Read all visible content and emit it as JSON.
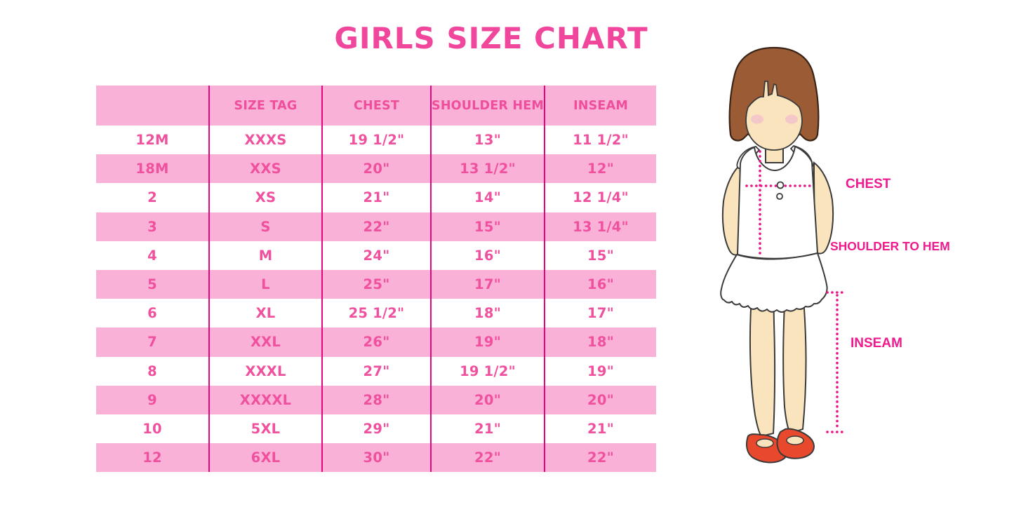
{
  "title": "GIRLS SIZE CHART",
  "colors": {
    "title_pink": "#F0479C",
    "table_text_pink": "#F0519E",
    "row_band_pink": "#FAB1D8",
    "divider_magenta": "#E5057E",
    "label_pink": "#ED1B8E",
    "dotted_line_pink": "#EC1287",
    "hair_brown": "#9A5B35",
    "skin": "#FAE4BE",
    "blush": "#F3C3C9",
    "shoe_red": "#E8492D",
    "background": "#FFFFFF"
  },
  "chart_data": {
    "type": "table",
    "title": "GIRLS SIZE CHART",
    "columns": [
      "",
      "SIZE TAG",
      "CHEST",
      "SHOULDER HEM",
      "INSEAM"
    ],
    "rows": [
      [
        "12M",
        "XXXS",
        "19 1/2\"",
        "13\"",
        "11 1/2\""
      ],
      [
        "18M",
        "XXS",
        "20\"",
        "13 1/2\"",
        "12\""
      ],
      [
        "2",
        "XS",
        "21\"",
        "14\"",
        "12 1/4\""
      ],
      [
        "3",
        "S",
        "22\"",
        "15\"",
        "13 1/4\""
      ],
      [
        "4",
        "M",
        "24\"",
        "16\"",
        "15\""
      ],
      [
        "5",
        "L",
        "25\"",
        "17\"",
        "16\""
      ],
      [
        "6",
        "XL",
        "25 1/2\"",
        "18\"",
        "17\""
      ],
      [
        "7",
        "XXL",
        "26\"",
        "19\"",
        "18\""
      ],
      [
        "8",
        "XXXL",
        "27\"",
        "19 1/2\"",
        "19\""
      ],
      [
        "9",
        "XXXXL",
        "28\"",
        "20\"",
        "20\""
      ],
      [
        "10",
        "5XL",
        "29\"",
        "21\"",
        "21\""
      ],
      [
        "12",
        "6XL",
        "30\"",
        "22\"",
        "22\""
      ]
    ],
    "row_striping": "header pink; data rows alternate white/pink starting white",
    "legend_position": "none",
    "grid": "vertical magenta dividers between columns only"
  },
  "figure": {
    "description": "cartoon girl with brown bob, white sleeveless top and skirt, red shoes",
    "labels": {
      "chest": "CHEST",
      "shoulder_to_hem": "SHOULDER TO HEM",
      "inseam": "INSEAM"
    }
  }
}
